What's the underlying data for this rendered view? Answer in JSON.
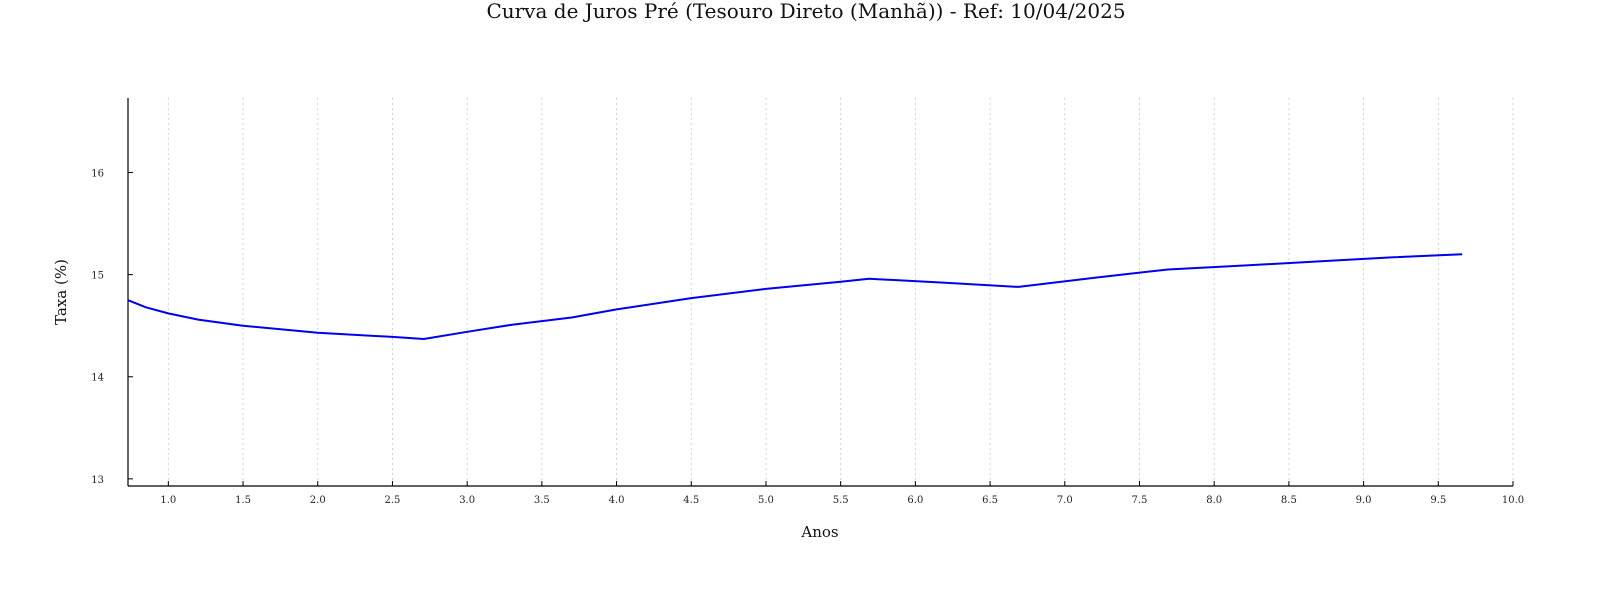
{
  "chart_data": {
    "type": "line",
    "title": "Curva de Juros Pré (Tesouro Direto (Manhã)) - Ref: 10/04/2025",
    "xlabel": "Anos",
    "ylabel": "Taxa (%)",
    "xlim": [
      0.73,
      10.0
    ],
    "ylim": [
      12.93,
      16.73
    ],
    "xticks": [
      1.0,
      1.5,
      2.0,
      2.5,
      3.0,
      3.5,
      4.0,
      4.5,
      5.0,
      5.5,
      6.0,
      6.5,
      7.0,
      7.5,
      8.0,
      8.5,
      9.0,
      9.5,
      10.0
    ],
    "xtick_labels": [
      "1.0",
      "1.5",
      "2.0",
      "2.5",
      "3.0",
      "3.5",
      "4.0",
      "4.5",
      "5.0",
      "5.5",
      "6.0",
      "6.5",
      "7.0",
      "7.5",
      "8.0",
      "8.5",
      "9.0",
      "9.5",
      "10.0"
    ],
    "yticks": [
      13,
      14,
      15,
      16
    ],
    "ytick_labels": [
      "13",
      "14",
      "15",
      "16"
    ],
    "grid": "x-dotted",
    "series": [
      {
        "color": "#0000ee",
        "x": [
          0.73,
          0.85,
          1.0,
          1.2,
          1.5,
          2.0,
          2.5,
          2.71,
          3.0,
          3.3,
          3.7,
          4.0,
          4.5,
          5.0,
          5.5,
          5.69,
          6.2,
          6.69,
          7.2,
          7.69,
          8.2,
          8.7,
          9.2,
          9.66
        ],
        "y": [
          14.75,
          14.68,
          14.62,
          14.56,
          14.5,
          14.43,
          14.39,
          14.37,
          14.44,
          14.51,
          14.58,
          14.66,
          14.77,
          14.86,
          14.93,
          14.96,
          14.92,
          14.88,
          14.97,
          15.05,
          15.09,
          15.13,
          15.17,
          15.2
        ]
      }
    ]
  }
}
